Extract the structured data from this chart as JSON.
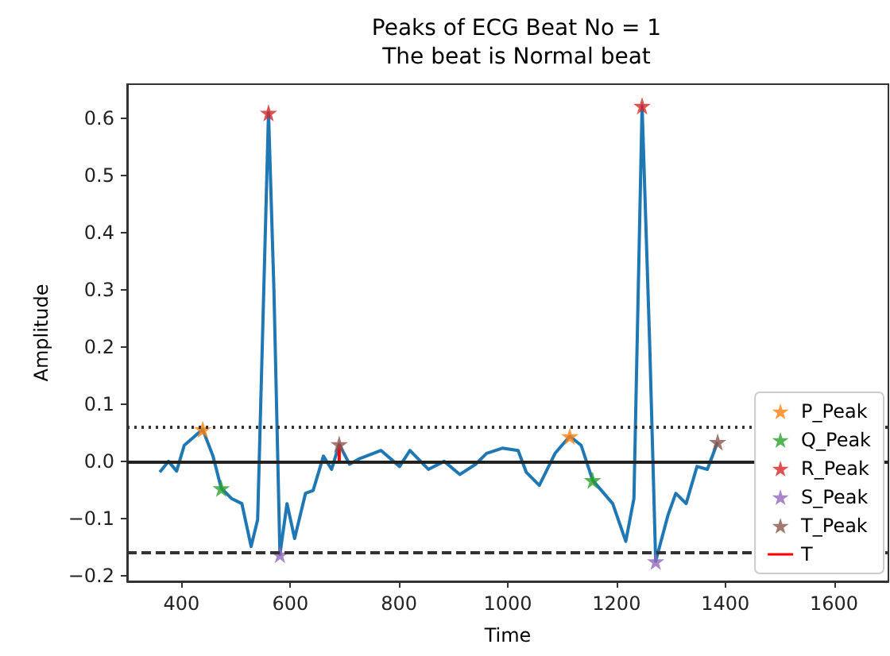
{
  "chart_data": {
    "type": "line",
    "title": "Peaks of ECG Beat No = 1",
    "subtitle": "The beat is Normal beat",
    "xlabel": "Time",
    "ylabel": "Amplitude",
    "xlim": [
      300,
      1700
    ],
    "xticks": [
      400,
      600,
      800,
      1000,
      1200,
      1400,
      1600
    ],
    "ylim": [
      -0.21,
      0.66
    ],
    "yticks": [
      {
        "value": -0.2,
        "label": "−0.2"
      },
      {
        "value": -0.1,
        "label": "−0.1"
      },
      {
        "value": 0,
        "label": "0.0"
      },
      {
        "value": 0.1,
        "label": "0.1"
      },
      {
        "value": 0.2,
        "label": "0.2"
      },
      {
        "value": 0.3,
        "label": "0.3"
      },
      {
        "value": 0.4,
        "label": "0.4"
      },
      {
        "value": 0.5,
        "label": "0.5"
      },
      {
        "value": 0.6,
        "label": "0.6"
      }
    ],
    "grid": false,
    "legend": "bottom right",
    "marker": "star",
    "series": [
      {
        "type": "line",
        "marker": "none",
        "color": "#1f77b4",
        "x": [
          360,
          376,
          391,
          405,
          439,
          458,
          473,
          492,
          511,
          528,
          540,
          560,
          570,
          581,
          594,
          608,
          628,
          642,
          661,
          676,
          690,
          709,
          728,
          767,
          801,
          820,
          854,
          883,
          912,
          941,
          961,
          990,
          1019,
          1034,
          1058,
          1087,
          1114,
          1135,
          1156,
          1193,
          1217,
          1232,
          1247,
          1261,
          1272,
          1295,
          1309,
          1328,
          1348,
          1367,
          1386
        ],
        "values": [
          -0.019,
          0,
          -0.017,
          0.028,
          0.056,
          0.009,
          -0.047,
          -0.065,
          -0.074,
          -0.149,
          -0.102,
          0.61,
          0.298,
          -0.163,
          -0.074,
          -0.135,
          -0.056,
          -0.051,
          0.009,
          -0.014,
          0.03,
          -0.005,
          0.005,
          0.019,
          -0.009,
          0.019,
          -0.014,
          0,
          -0.023,
          -0.005,
          0.014,
          0.023,
          0.019,
          -0.019,
          -0.042,
          0.014,
          0.044,
          0.028,
          -0.033,
          -0.074,
          -0.14,
          -0.065,
          0.622,
          0.205,
          -0.175,
          -0.093,
          -0.056,
          -0.074,
          -0.009,
          -0.014,
          0.034
        ]
      },
      {
        "type": "scatter",
        "name": "P_Peak",
        "color": "#ff7f0e",
        "x": [
          439,
          1114
        ],
        "values": [
          0.056,
          0.044
        ]
      },
      {
        "type": "scatter",
        "name": "Q_Peak",
        "color": "#2ca02c",
        "x": [
          473,
          1156
        ],
        "values": [
          -0.047,
          -0.033
        ]
      },
      {
        "type": "scatter",
        "name": "R_Peak",
        "color": "#d62728",
        "x": [
          560,
          1247
        ],
        "values": [
          0.61,
          0.622
        ]
      },
      {
        "type": "scatter",
        "name": "S_Peak",
        "color": "#9467bd",
        "x": [
          581,
          1272
        ],
        "values": [
          -0.163,
          -0.175
        ]
      },
      {
        "type": "scatter",
        "name": "T_Peak",
        "color": "#8c564b",
        "x": [
          690,
          1386
        ],
        "values": [
          0.03,
          0.034
        ]
      },
      {
        "type": "line",
        "name": "T",
        "marker": "none",
        "color": "#ff0000",
        "x": [
          690,
          690
        ],
        "values": [
          0,
          0.03
        ]
      }
    ],
    "ref_lines": [
      {
        "axis": "y",
        "value": 0,
        "color": "#222222",
        "line_style": "solid"
      },
      {
        "axis": "y",
        "value": 0.058,
        "color": "#333333",
        "line_style": "dotted"
      },
      {
        "axis": "y",
        "value": -0.163,
        "color": "#333333",
        "line_style": "dashed"
      }
    ]
  }
}
